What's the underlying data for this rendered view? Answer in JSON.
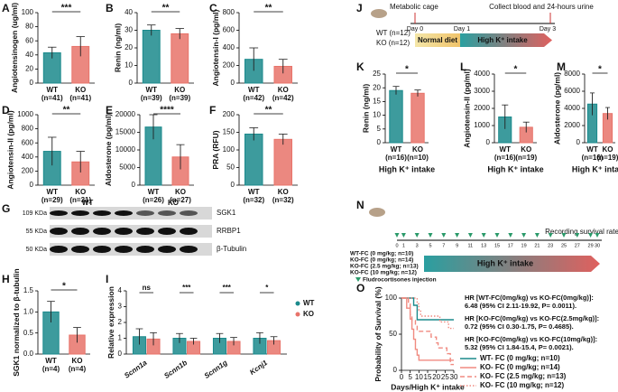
{
  "chart_data": [
    {
      "type": "bar",
      "panel": "A",
      "ylabel": "Angiotensinogen (ug/ml)",
      "categories": [
        "WT",
        "KO"
      ],
      "n_labels": [
        "(n=41)",
        "(n=41)"
      ],
      "values": [
        43,
        52
      ],
      "errors": [
        8,
        14
      ],
      "colors": [
        "#1b8a8c",
        "#e8736a"
      ],
      "ylim": [
        0,
        100
      ],
      "yticks": [
        0,
        20,
        40,
        60,
        80,
        100
      ],
      "significance": "***"
    },
    {
      "type": "bar",
      "panel": "B",
      "ylabel": "Renin (ng/ml)",
      "categories": [
        "WT",
        "KO"
      ],
      "n_labels": [
        "(n=39)",
        "(n=39)"
      ],
      "values": [
        30,
        28
      ],
      "errors": [
        3,
        3
      ],
      "colors": [
        "#1b8a8c",
        "#e8736a"
      ],
      "ylim": [
        0,
        40
      ],
      "yticks": [
        0,
        10,
        20,
        30,
        40
      ],
      "significance": "**"
    },
    {
      "type": "bar",
      "panel": "C",
      "ylabel": "Angiotensin-I (pg/ml)",
      "categories": [
        "WT",
        "KO"
      ],
      "n_labels": [
        "(n=42)",
        "(n=42)"
      ],
      "values": [
        270,
        190
      ],
      "errors": [
        130,
        80
      ],
      "colors": [
        "#1b8a8c",
        "#e8736a"
      ],
      "ylim": [
        0,
        800
      ],
      "yticks": [
        0,
        200,
        400,
        600,
        800
      ],
      "significance": "**"
    },
    {
      "type": "bar",
      "panel": "D",
      "ylabel": "Angiotensin-II (pg/ml)",
      "categories": [
        "WT",
        "KO"
      ],
      "n_labels": [
        "(n=29)",
        "(n=31)"
      ],
      "values": [
        480,
        330
      ],
      "errors": [
        200,
        150
      ],
      "colors": [
        "#1b8a8c",
        "#e8736a"
      ],
      "ylim": [
        0,
        1000
      ],
      "yticks": [
        0,
        200,
        400,
        600,
        800,
        1000
      ],
      "significance": "**"
    },
    {
      "type": "bar",
      "panel": "E",
      "ylabel": "Aldosterone (pg/ml)",
      "categories": [
        "WT",
        "KO"
      ],
      "n_labels": [
        "(n=26)",
        "(n=27)"
      ],
      "values": [
        16500,
        8000
      ],
      "errors": [
        3500,
        3500
      ],
      "colors": [
        "#1b8a8c",
        "#e8736a"
      ],
      "ylim": [
        0,
        20000
      ],
      "yticks": [
        0,
        5000,
        10000,
        15000,
        20000
      ],
      "significance": "****"
    },
    {
      "type": "bar",
      "panel": "F",
      "ylabel": "PRA (RFU)",
      "categories": [
        "WT",
        "KO"
      ],
      "n_labels": [
        "(n=32)",
        "(n=32)"
      ],
      "values": [
        145,
        130
      ],
      "errors": [
        18,
        15
      ],
      "colors": [
        "#1b8a8c",
        "#e8736a"
      ],
      "ylim": [
        0,
        200
      ],
      "yticks": [
        0,
        50,
        100,
        150,
        200
      ],
      "significance": "**"
    },
    {
      "type": "bar",
      "panel": "H",
      "ylabel": "SGK1 normalized to β-tubulin",
      "categories": [
        "WT",
        "KO"
      ],
      "n_labels": [
        "(n=4)",
        "(n=4)"
      ],
      "values": [
        1.0,
        0.45
      ],
      "errors": [
        0.25,
        0.18
      ],
      "colors": [
        "#1b8a8c",
        "#e8736a"
      ],
      "ylim": [
        0,
        1.5
      ],
      "yticks": [
        {
          "value": 0,
          "label": "0.0"
        },
        0.5,
        {
          "value": 1,
          "label": "1.0"
        },
        1.5
      ],
      "significance": "*"
    },
    {
      "type": "grouped_bar",
      "panel": "I",
      "ylabel": "Relative expression",
      "categories": [
        "Scnn1a",
        "Scnn1b",
        "Scnn1g",
        "Kcnj1"
      ],
      "series": [
        {
          "name": "WT",
          "color": "#1b8a8c",
          "values": [
            1.1,
            1.0,
            1.0,
            1.0
          ],
          "errors": [
            0.5,
            0.3,
            0.3,
            0.35
          ]
        },
        {
          "name": "KO",
          "color": "#e8736a",
          "values": [
            0.95,
            0.8,
            0.8,
            0.85
          ],
          "errors": [
            0.4,
            0.2,
            0.25,
            0.25
          ]
        }
      ],
      "ylim": [
        0,
        4
      ],
      "yticks": [
        0,
        1,
        2,
        3,
        4
      ],
      "significance": [
        "ns",
        "***",
        "***",
        "*"
      ]
    },
    {
      "type": "bar",
      "panel": "K",
      "ylabel": "Renin (ng/ml)",
      "xlabel": "High K⁺ intake",
      "categories": [
        "WT",
        "KO"
      ],
      "n_labels": [
        "(n=16)",
        "(n=10)"
      ],
      "values": [
        19,
        18
      ],
      "errors": [
        1.5,
        1.2
      ],
      "colors": [
        "#1b8a8c",
        "#e8736a"
      ],
      "ylim": [
        0,
        25
      ],
      "yticks": [
        0,
        5,
        10,
        15,
        20,
        25
      ],
      "significance": "*"
    },
    {
      "type": "bar",
      "panel": "L",
      "ylabel": "Angiotensin-II (pg/ml)",
      "xlabel": "High K⁺ intake",
      "categories": [
        "WT",
        "KO"
      ],
      "n_labels": [
        "(n=16)",
        "(n=19)"
      ],
      "values": [
        1500,
        900
      ],
      "errors": [
        700,
        300
      ],
      "colors": [
        "#1b8a8c",
        "#e8736a"
      ],
      "ylim": [
        0,
        4000
      ],
      "yticks": [
        0,
        1000,
        2000,
        3000,
        4000
      ],
      "significance": "*"
    },
    {
      "type": "bar",
      "panel": "M",
      "ylabel": "Aldosterone (pg/ml)",
      "xlabel": "High K⁺ intake",
      "categories": [
        "WT",
        "KO"
      ],
      "n_labels": [
        "(n=16)",
        "(n=19)"
      ],
      "values": [
        4500,
        3400
      ],
      "errors": [
        1300,
        700
      ],
      "colors": [
        "#1b8a8c",
        "#e8736a"
      ],
      "ylim": [
        0,
        8000
      ],
      "yticks": [
        0,
        2000,
        4000,
        6000,
        8000
      ],
      "significance": "*"
    },
    {
      "type": "survival",
      "panel": "O",
      "ylabel": "Probability of Survival (%)",
      "xlabel": "Days/High K⁺ intake",
      "xlim": [
        0,
        30
      ],
      "xticks": [
        0,
        5,
        10,
        15,
        20,
        25,
        30
      ],
      "ylim": [
        0,
        100
      ],
      "yticks": [
        0,
        50,
        100
      ],
      "series": [
        {
          "name": "WT- FC (0 mg/kg; n=10)",
          "color": "#1b8a8c",
          "dash": "solid",
          "x": [
            0,
            7,
            9,
            30
          ],
          "values": [
            100,
            90,
            70,
            70
          ]
        },
        {
          "name": "KO- FC (0 mg/kg; n=14)",
          "color": "#f08a80",
          "dash": "solid",
          "x": [
            0,
            3,
            5,
            6,
            7,
            8,
            9,
            10,
            30
          ],
          "values": [
            100,
            86,
            71,
            57,
            43,
            29,
            21,
            14,
            14
          ]
        },
        {
          "name": "KO- FC (2.5 mg/kg; n=13)",
          "color": "#f08a80",
          "dash": "dashed",
          "x": [
            0,
            4,
            5,
            6,
            8,
            9,
            17,
            20,
            21,
            26,
            28,
            30
          ],
          "values": [
            100,
            92,
            77,
            69,
            62,
            54,
            46,
            38,
            31,
            23,
            8,
            8
          ]
        },
        {
          "name": "KO- FC (10 mg/kg; n=12)",
          "color": "#f08a80",
          "dash": "dotted",
          "x": [
            0,
            9,
            10,
            11,
            22,
            27,
            30
          ],
          "values": [
            100,
            92,
            83,
            75,
            67,
            58,
            58
          ]
        }
      ],
      "annotations": [
        [
          "HR [WT-FC(0mg/kg) vs KO-FC(0mg/kg)]:",
          "6.48 (95% CI 2.11-19.92, P= 0.0011)."
        ],
        [
          "HR [KO-FC(0mg/kg) vs KO-FC(2.5mg/kg)]:",
          "0.72 (95% CI 0.30-1.75, P= 0.4685)."
        ],
        [
          "HR [KO-FC(0mg/kg) vs KO-FC(10mg/kg)]:",
          "5.32 (95% CI 1.84-15.4, P= 0.0021)."
        ]
      ]
    }
  ],
  "western_blot": {
    "panel": "G",
    "groups": [
      "WT",
      "KO"
    ],
    "sizes": [
      "109 KDa",
      "55 KDa",
      "50 KDa"
    ],
    "proteins": [
      "SGK1",
      "RRBP1",
      "β-Tubulin"
    ]
  },
  "timeline_j": {
    "panel": "J",
    "top_left": "Metabolic cage",
    "top_right": "Collect blood and 24-hours urine",
    "groups": [
      "WT (n=12)",
      "KO (n=12)"
    ],
    "days": [
      "Day 0",
      "Day 1",
      "Day 3"
    ],
    "phase1": "Normal diet",
    "phase2": "High K⁺ intake"
  },
  "timeline_n": {
    "panel": "N",
    "note": "Recording survival rate",
    "days": [
      0,
      1,
      3,
      5,
      7,
      9,
      11,
      13,
      15,
      17,
      19,
      21,
      23,
      25,
      27,
      29,
      30
    ],
    "groups": [
      "WT-FC (0 mg/kg; n=10)",
      "KO-FC (0 mg/kg; n=14)",
      "KO-FC (2.5 mg/kg; n=13)",
      "KO-FC (10 mg/kg; n=12)"
    ],
    "phase": "High K⁺ intake",
    "injection": "Fludrocortisones injection"
  }
}
